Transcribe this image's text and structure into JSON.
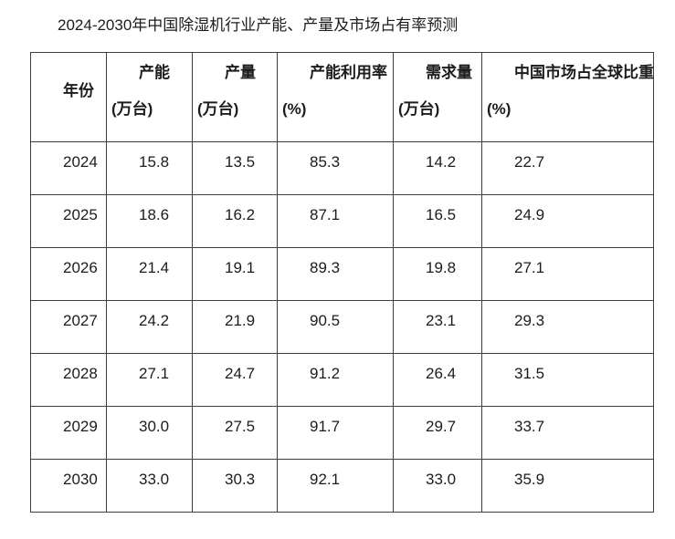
{
  "chart_data": {
    "type": "table",
    "title": "2024-2030年中国除湿机行业产能、产量及市场占有率预测",
    "columns": [
      {
        "label": "年份",
        "unit": ""
      },
      {
        "label": "产能",
        "unit": "(万台)"
      },
      {
        "label": "产量",
        "unit": "(万台)"
      },
      {
        "label": "产能利用率",
        "unit": "(%)"
      },
      {
        "label": "需求量",
        "unit": "(万台)"
      },
      {
        "label": "中国市场占全球比重",
        "unit": "(%)"
      }
    ],
    "rows": [
      [
        "2024",
        "15.8",
        "13.5",
        "85.3",
        "14.2",
        "22.7"
      ],
      [
        "2025",
        "18.6",
        "16.2",
        "87.1",
        "16.5",
        "24.9"
      ],
      [
        "2026",
        "21.4",
        "19.1",
        "89.3",
        "19.8",
        "27.1"
      ],
      [
        "2027",
        "24.2",
        "21.9",
        "90.5",
        "23.1",
        "29.3"
      ],
      [
        "2028",
        "27.1",
        "24.7",
        "91.2",
        "26.4",
        "31.5"
      ],
      [
        "2029",
        "30.0",
        "27.5",
        "91.7",
        "29.7",
        "33.7"
      ],
      [
        "2030",
        "33.0",
        "30.3",
        "92.1",
        "33.0",
        "35.9"
      ]
    ]
  },
  "colors": {
    "text": "#1c1c1c",
    "border": "#3e3e3e",
    "background": "#ffffff"
  }
}
